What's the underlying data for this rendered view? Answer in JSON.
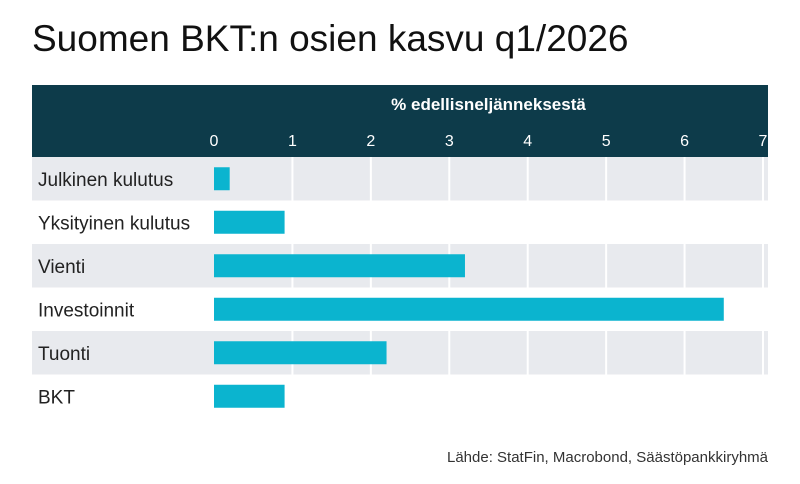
{
  "title": "Suomen BKT:n osien kasvu q1/2026",
  "source": "Lähde: StatFin, Macrobond, Säästöpankkiryhmä",
  "colors": {
    "header_bg": "#0d3b4a",
    "header_text": "#ffffff",
    "bar": "#0bb4cf",
    "row_shade": "#e8eaee",
    "grid": "#ffffff"
  },
  "chart_data": {
    "type": "bar",
    "orientation": "horizontal",
    "title": "Suomen BKT:n osien kasvu q1/2026",
    "xlabel": "% edellisneljänneksestä",
    "ylabel": "",
    "xlim": [
      0,
      7
    ],
    "xticks": [
      "0",
      "1",
      "2",
      "3",
      "4",
      "5",
      "6",
      "7"
    ],
    "categories": [
      "Julkinen kulutus",
      "Yksityinen kulutus",
      "Vienti",
      "Investoinnit",
      "Tuonti",
      "BKT"
    ],
    "values": [
      0.2,
      0.9,
      3.2,
      6.5,
      2.2,
      0.9
    ],
    "grid": true,
    "legend": "none"
  }
}
